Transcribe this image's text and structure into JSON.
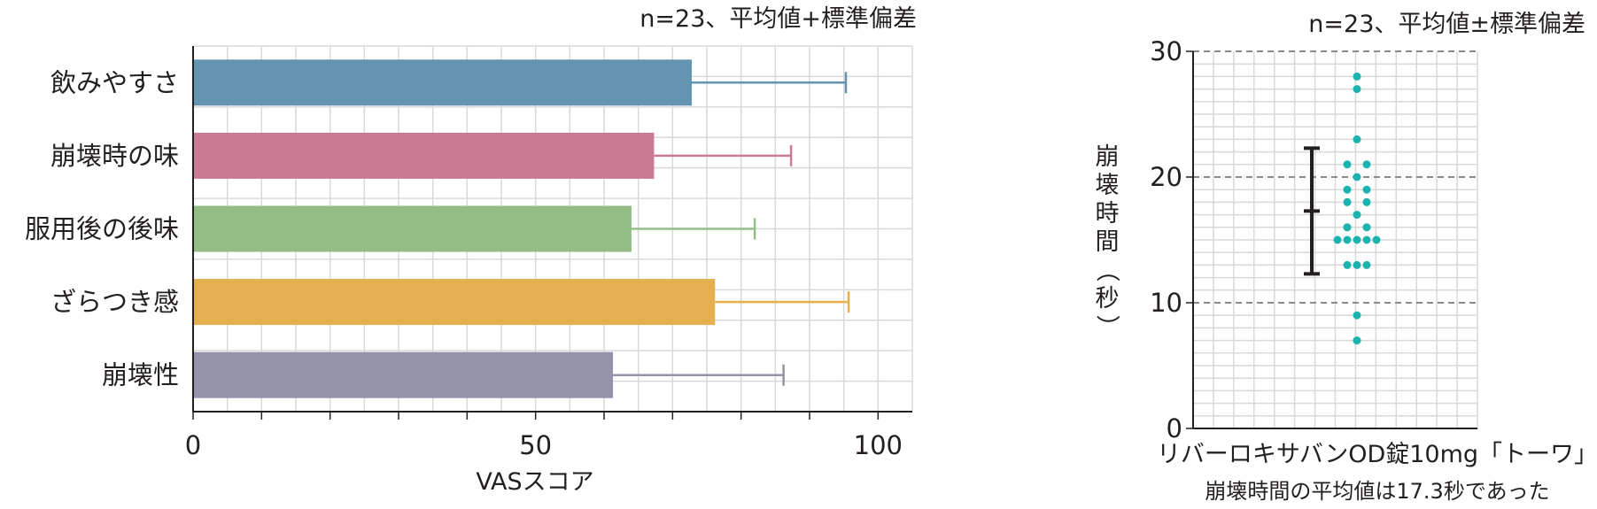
{
  "chart_data": [
    {
      "type": "bar",
      "orientation": "horizontal",
      "annotation": "n=23、平均値+標準偏差",
      "xlabel": "VASスコア",
      "ylabel": "",
      "xlim": [
        0,
        105
      ],
      "xticks": [
        0,
        50,
        100
      ],
      "grid": true,
      "categories": [
        "飲みやすさ",
        "崩壊時の味",
        "服用後の後味",
        "ざらつき感",
        "崩壊性"
      ],
      "values": [
        72.8,
        67.3,
        64.0,
        76.2,
        61.3
      ],
      "error_upper": [
        95.3,
        87.3,
        82.0,
        95.7,
        86.2
      ],
      "colors": [
        "#6394b0",
        "#c97b94",
        "#93bd85",
        "#e4b04f",
        "#9493ab"
      ]
    },
    {
      "type": "scatter",
      "annotation": "n=23、平均値±標準偏差",
      "xlabel": "リバーロキサバンOD錠10mg「トーワ」",
      "ylabel": "崩壊時間（秒）",
      "caption": "崩壊時間の平均値は17.3秒であった",
      "ylim": [
        0,
        30
      ],
      "yticks": [
        0,
        10,
        20,
        30
      ],
      "grid": true,
      "mean": 17.3,
      "sd_low": 12.3,
      "sd_high": 22.3,
      "point_color": "#1bb3ad",
      "points": [
        {
          "y": 28,
          "col": 0
        },
        {
          "y": 27,
          "col": 0
        },
        {
          "y": 23,
          "col": 0
        },
        {
          "y": 21,
          "col": -1
        },
        {
          "y": 21,
          "col": 1
        },
        {
          "y": 20,
          "col": 0
        },
        {
          "y": 19,
          "col": -1
        },
        {
          "y": 19,
          "col": 1
        },
        {
          "y": 18,
          "col": -1
        },
        {
          "y": 18,
          "col": 1
        },
        {
          "y": 17,
          "col": 0
        },
        {
          "y": 16,
          "col": -1
        },
        {
          "y": 16,
          "col": 1
        },
        {
          "y": 15,
          "col": -2
        },
        {
          "y": 15,
          "col": -1
        },
        {
          "y": 15,
          "col": 0
        },
        {
          "y": 15,
          "col": 1
        },
        {
          "y": 15,
          "col": 2
        },
        {
          "y": 13,
          "col": -1
        },
        {
          "y": 13,
          "col": 0
        },
        {
          "y": 13,
          "col": 1
        },
        {
          "y": 9,
          "col": 0
        },
        {
          "y": 7,
          "col": 0
        }
      ]
    }
  ]
}
